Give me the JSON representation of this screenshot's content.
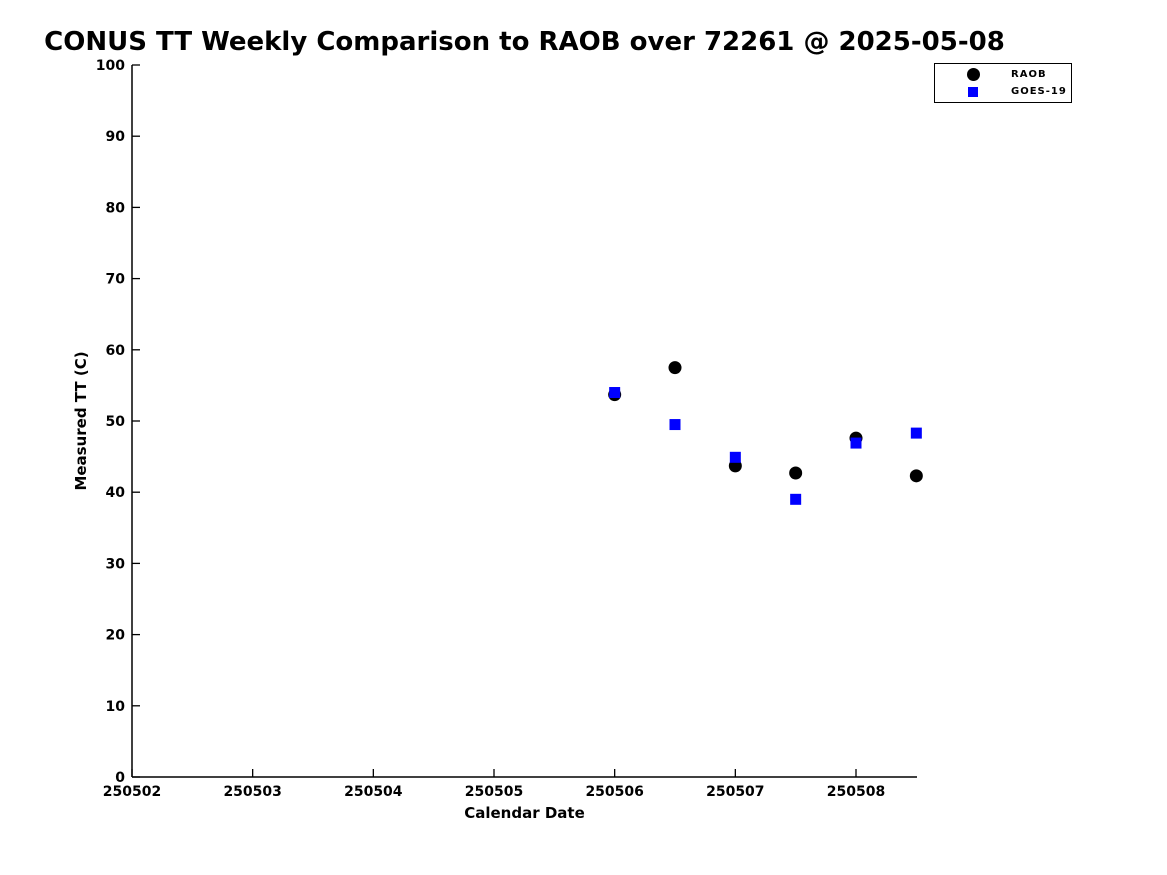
{
  "chart_data": {
    "type": "scatter",
    "title": "CONUS TT Weekly Comparison to RAOB over 72261 @ 2025-05-08",
    "xlabel": "Calendar Date",
    "ylabel": "Measured TT (C)",
    "xlim": [
      250502,
      250508.5
    ],
    "ylim": [
      0,
      100
    ],
    "x_ticks": [
      250502,
      250503,
      250504,
      250505,
      250506,
      250507,
      250508
    ],
    "y_ticks": [
      0,
      10,
      20,
      30,
      40,
      50,
      60,
      70,
      80,
      90,
      100
    ],
    "grid": false,
    "legend_position": "top-right-outside-plot",
    "background_color": "#ffffff",
    "axis_color": "#000000",
    "series": [
      {
        "name": "RAOB",
        "marker": "circle",
        "color": "#000000",
        "points": [
          [
            250506.0,
            53.7
          ],
          [
            250506.5,
            57.5
          ],
          [
            250507.0,
            43.7
          ],
          [
            250507.5,
            42.7
          ],
          [
            250508.0,
            47.6
          ],
          [
            250508.5,
            42.3
          ]
        ]
      },
      {
        "name": "GOES-19",
        "marker": "square",
        "color": "#0000ff",
        "points": [
          [
            250506.0,
            54.0
          ],
          [
            250506.5,
            49.5
          ],
          [
            250507.0,
            44.9
          ],
          [
            250507.5,
            39.0
          ],
          [
            250508.0,
            46.9
          ],
          [
            250508.5,
            48.3
          ]
        ]
      }
    ]
  }
}
